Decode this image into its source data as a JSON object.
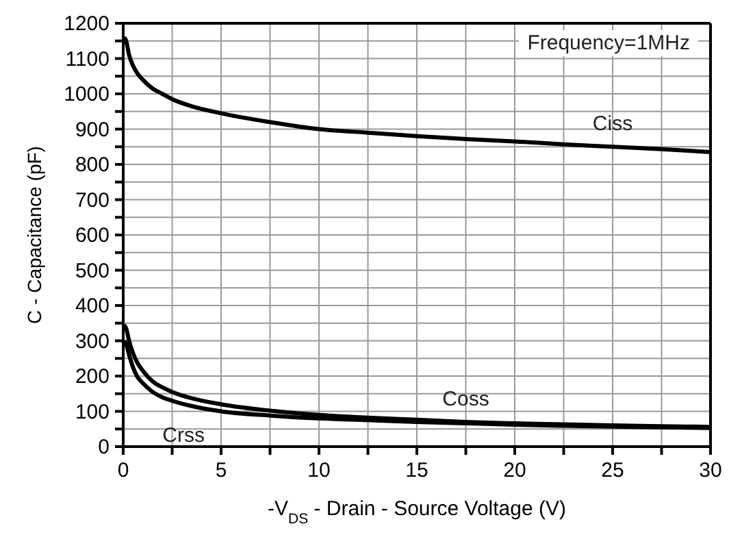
{
  "chart_data": {
    "type": "line",
    "xlabel": "-V$_{DS}$ - Drain - Source Voltage (V)",
    "ylabel": "C - Capacitance (pF)",
    "annotations": [
      "Frequency=1MHz"
    ],
    "series": [
      {
        "name": "Ciss",
        "color": "#000000",
        "x": [
          0.05,
          0.15,
          0.3,
          0.5,
          0.7,
          1,
          1.5,
          2,
          2.5,
          3.5,
          5,
          7.5,
          10,
          12.5,
          15,
          17.5,
          20,
          22.5,
          25,
          27.5,
          30
        ],
        "values": [
          1160,
          1150,
          1110,
          1080,
          1060,
          1040,
          1015,
          1000,
          985,
          965,
          945,
          920,
          900,
          890,
          880,
          872,
          865,
          857,
          850,
          843,
          835
        ]
      },
      {
        "name": "Coss",
        "color": "#000000",
        "x": [
          0.05,
          0.15,
          0.3,
          0.5,
          0.7,
          1,
          1.5,
          2,
          2.5,
          3.5,
          5,
          7.5,
          10,
          12.5,
          15,
          17.5,
          20,
          22.5,
          25,
          27.5,
          30
        ],
        "values": [
          345,
          335,
          300,
          265,
          240,
          215,
          185,
          168,
          155,
          137,
          120,
          102,
          90,
          82,
          76,
          70,
          66,
          63,
          60,
          58,
          56
        ]
      },
      {
        "name": "Crss",
        "color": "#000000",
        "x": [
          0.05,
          0.15,
          0.3,
          0.5,
          0.7,
          1,
          1.5,
          2,
          2.5,
          3.5,
          5,
          7.5,
          10,
          12.5,
          15,
          17.5,
          20,
          22.5,
          25,
          27.5,
          30
        ],
        "values": [
          300,
          290,
          260,
          225,
          200,
          180,
          155,
          140,
          130,
          115,
          100,
          88,
          80,
          75,
          70,
          66,
          62,
          59,
          57,
          55,
          53
        ]
      }
    ],
    "xlim": [
      0,
      30
    ],
    "ylim": [
      0,
      1200
    ],
    "xticks": [
      0,
      {
        "value": 2.5,
        "label": null
      },
      5,
      {
        "value": 7.5,
        "label": null
      },
      10,
      {
        "value": 12.5,
        "label": null
      },
      15,
      {
        "value": 17.5,
        "label": null
      },
      20,
      {
        "value": 22.5,
        "label": null
      },
      25,
      {
        "value": 27.5,
        "label": null
      },
      30
    ],
    "yticks": [
      0,
      {
        "value": 50,
        "label": null
      },
      100,
      {
        "value": 150,
        "label": null
      },
      200,
      {
        "value": 250,
        "label": null
      },
      300,
      {
        "value": 350,
        "label": null
      },
      400,
      {
        "value": 450,
        "label": null
      },
      500,
      {
        "value": 550,
        "label": null
      },
      600,
      {
        "value": 650,
        "label": null
      },
      700,
      {
        "value": 750,
        "label": null
      },
      800,
      {
        "value": 850,
        "label": null
      },
      900,
      {
        "value": 950,
        "label": null
      },
      1000,
      {
        "value": 1050,
        "label": null
      },
      1100,
      {
        "value": 1150,
        "label": null
      },
      1200
    ],
    "grid": true,
    "legend": false,
    "marker": "none",
    "line_style": "solid"
  }
}
